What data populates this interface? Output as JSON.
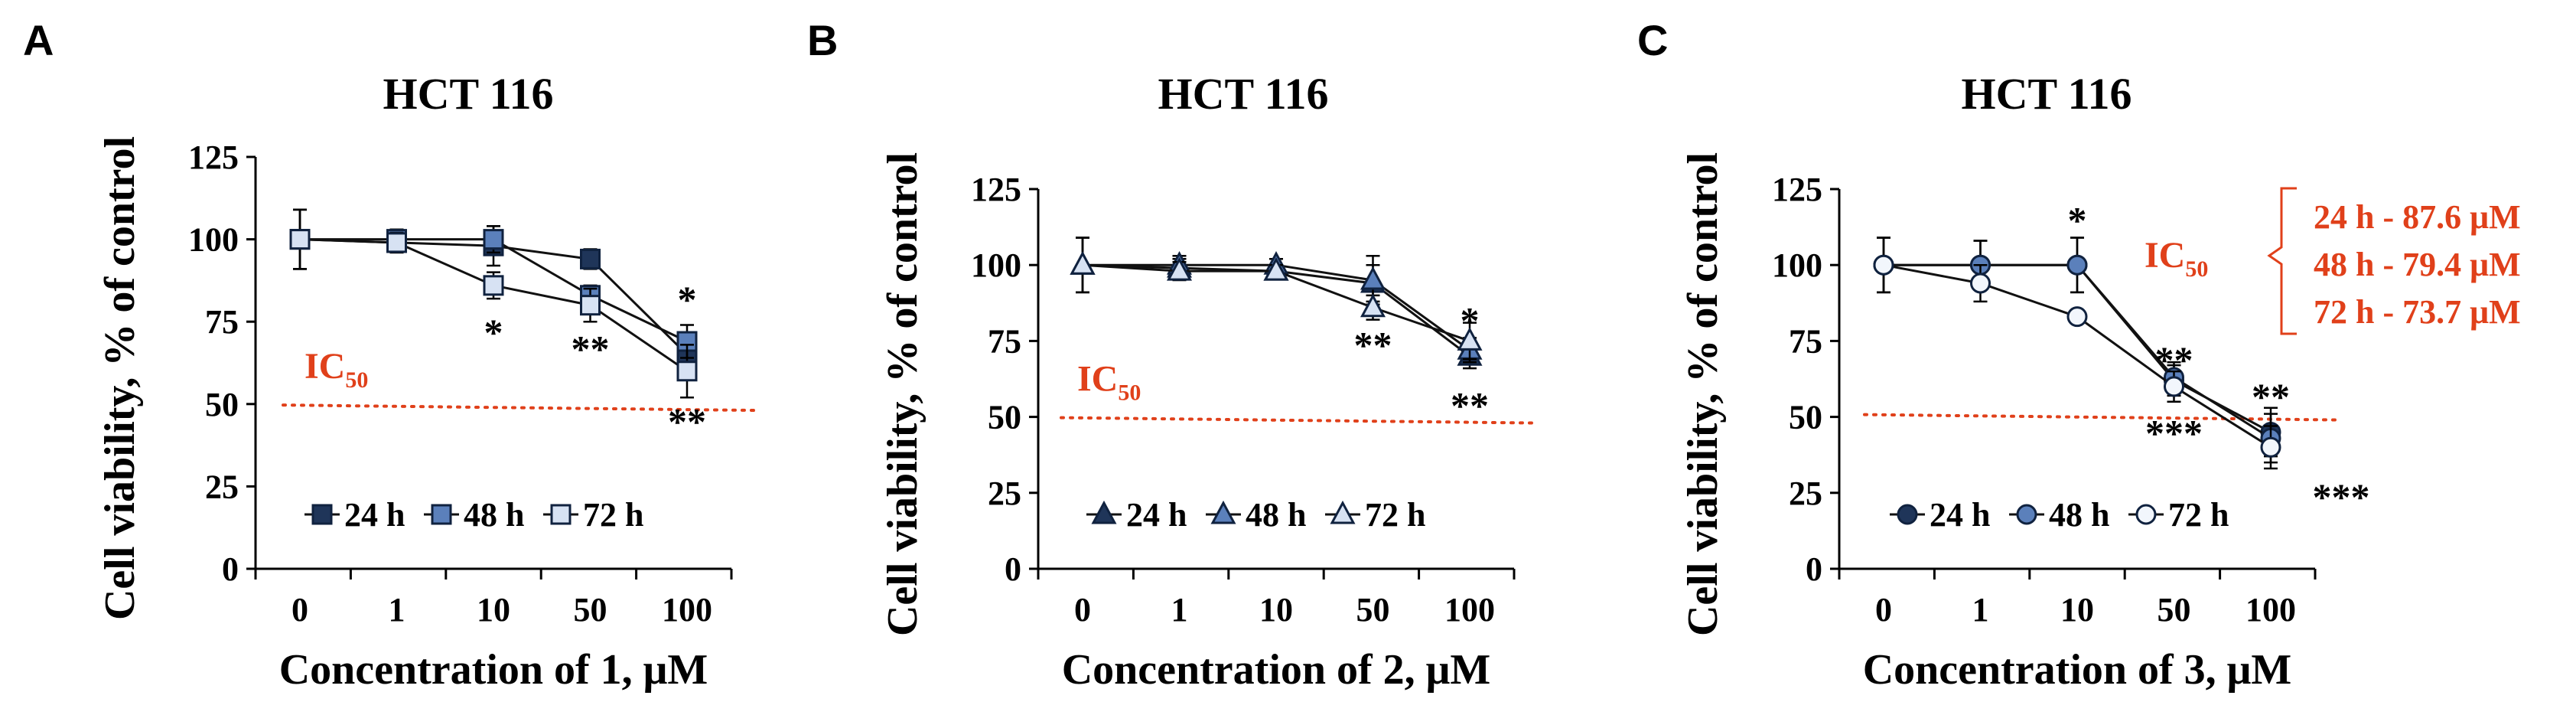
{
  "chart_data": [
    {
      "type": "line",
      "panel": "A",
      "title": "HCT 116",
      "xlabel": "Concentration of 1, μM",
      "ylabel": "Cell viability, % of control",
      "categories": [
        "0",
        "1",
        "10",
        "50",
        "100"
      ],
      "ylim": [
        0,
        125
      ],
      "yticks": [
        "0",
        "25",
        "50",
        "75",
        "100",
        "125"
      ],
      "ic50_label": "IC",
      "ic50_sub": "50",
      "ic50_value": 49,
      "series": [
        {
          "name": "24 h",
          "marker": "square",
          "fill": "#1f3559",
          "values": [
            100,
            99,
            98,
            94,
            65
          ],
          "errors": [
            9,
            3,
            6,
            3,
            6
          ]
        },
        {
          "name": "48 h",
          "marker": "square",
          "fill": "#5b80bb",
          "values": [
            100,
            100,
            100,
            83,
            69
          ],
          "errors": [
            9,
            3,
            4,
            3,
            5
          ]
        },
        {
          "name": "72 h",
          "marker": "square",
          "fill": "#d7e2f3",
          "values": [
            100,
            99,
            86,
            80,
            60
          ],
          "errors": [
            9,
            3,
            4,
            5,
            8
          ]
        }
      ],
      "annotations": [
        {
          "text": "*",
          "x": "10",
          "y": 72
        },
        {
          "text": "**",
          "x": "50",
          "y": 67
        },
        {
          "text": "*",
          "x": "100",
          "y": 82
        },
        {
          "text": "**",
          "x": "100",
          "y": 45
        }
      ]
    },
    {
      "type": "line",
      "panel": "B",
      "title": "HCT 116",
      "xlabel": "Concentration of 2, μM",
      "ylabel": "Cell viability, % of control",
      "categories": [
        "0",
        "1",
        "10",
        "50",
        "100"
      ],
      "ylim": [
        0,
        125
      ],
      "yticks": [
        "0",
        "25",
        "50",
        "75",
        "100",
        "125"
      ],
      "ic50_label": "IC",
      "ic50_sub": "50",
      "ic50_value": 49,
      "series": [
        {
          "name": "24 h",
          "marker": "triangle",
          "fill": "#1f3559",
          "values": [
            100,
            99,
            98,
            94,
            70
          ],
          "errors": [
            9,
            3,
            2,
            6,
            4
          ]
        },
        {
          "name": "48 h",
          "marker": "triangle",
          "fill": "#5b80bb",
          "values": [
            100,
            100,
            100,
            95,
            72
          ],
          "errors": [
            9,
            3,
            2,
            8,
            4
          ]
        },
        {
          "name": "72 h",
          "marker": "triangle",
          "fill": "#d7e2f3",
          "values": [
            100,
            98,
            98,
            86,
            75
          ],
          "errors": [
            9,
            3,
            2,
            4,
            6
          ]
        }
      ],
      "annotations": [
        {
          "text": "*",
          "x": "100",
          "y": 82
        },
        {
          "text": "**",
          "x": "50",
          "y": 74
        },
        {
          "text": "**",
          "x": "100",
          "y": 54
        }
      ]
    },
    {
      "type": "line",
      "panel": "C",
      "title": "HCT 116",
      "xlabel": "Concentration of 3, μM",
      "ylabel": "Cell viability, % of control",
      "categories": [
        "0",
        "1",
        "10",
        "50",
        "100"
      ],
      "ylim": [
        0,
        125
      ],
      "yticks": [
        "0",
        "25",
        "50",
        "75",
        "100",
        "125"
      ],
      "ic50_label": "IC",
      "ic50_sub": "50",
      "ic50_value": 50,
      "ic50_values": [
        "24 h - 87.6 μM",
        "48 h - 79.4 μM",
        "72 h - 73.7 μM"
      ],
      "series": [
        {
          "name": "24 h",
          "marker": "circle",
          "fill": "#1f3559",
          "values": [
            100,
            100,
            100,
            62,
            45
          ],
          "errors": [
            9,
            8,
            9,
            5,
            8
          ]
        },
        {
          "name": "48 h",
          "marker": "circle",
          "fill": "#5b80bb",
          "values": [
            100,
            100,
            100,
            63,
            43
          ],
          "errors": [
            9,
            8,
            9,
            5,
            8
          ]
        },
        {
          "name": "72 h",
          "marker": "circle",
          "fill": "#f2f6fc",
          "values": [
            100,
            94,
            83,
            60,
            40
          ],
          "errors": [
            9,
            6,
            2,
            5,
            7
          ]
        }
      ],
      "annotations": [
        {
          "text": "*",
          "x": "10",
          "y": 115
        },
        {
          "text": "**",
          "x": "50",
          "y": 69
        },
        {
          "text": "***",
          "x": "50",
          "y": 45
        },
        {
          "text": "**",
          "x": "100",
          "y": 57
        },
        {
          "text": "***",
          "x": "100",
          "y": 24
        }
      ]
    }
  ]
}
